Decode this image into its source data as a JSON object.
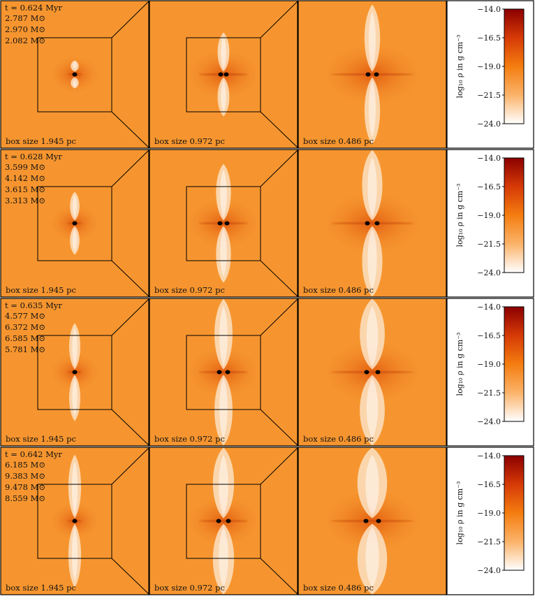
{
  "rows": [
    {
      "time": "t = 0.624 Myr",
      "masses": [
        "2.787 M⊙",
        "2.970 M⊙",
        "2.082 M⊙"
      ],
      "sinks": [
        [
          0.5,
          0.5
        ],
        [
          0.5,
          0.5
        ],
        [
          0.5,
          0.5
        ]
      ]
    },
    {
      "time": "t = 0.628 Myr",
      "masses": [
        "3.599 M⊙",
        "4.142 M⊙",
        "3.615 M⊙",
        "3.313 M⊙"
      ],
      "sinks": [
        [
          0.5,
          0.5
        ],
        [
          0.5,
          0.5
        ],
        [
          0.5,
          0.5
        ]
      ]
    },
    {
      "time": "t = 0.635 Myr",
      "masses": [
        "4.577 M⊙",
        "6.372 M⊙",
        "6.585 M⊙",
        "5.781 M⊙"
      ],
      "sinks": [
        [
          0.5,
          0.5
        ],
        [
          0.5,
          0.5
        ],
        [
          0.5,
          0.5
        ]
      ]
    },
    {
      "time": "t = 0.642 Myr",
      "masses": [
        "6.185 M⊙",
        "9.383 M⊙",
        "9.478 M⊙",
        "8.559 M⊙"
      ],
      "sinks": [
        [
          0.5,
          0.5
        ],
        [
          0.5,
          0.5
        ],
        [
          0.5,
          0.5
        ]
      ]
    }
  ],
  "box_sizes": [
    "box size 1.945 pc",
    "box size 0.972 pc",
    "box size 0.486 pc"
  ],
  "colorbar": {
    "label": "log₁₀ ρ in g cm⁻³",
    "ticks": [
      "−14.0",
      "−16.5",
      "−19.0",
      "−21.5",
      "−24.0"
    ],
    "tick_values": [
      -14.0,
      -16.5,
      -19.0,
      -21.5,
      -24.0
    ],
    "range": [
      -24.0,
      -14.0
    ],
    "colors": {
      "top": "#8b0000",
      "mid": "#f47d10",
      "bottom": "#ffffff"
    }
  },
  "panel_background": "#f6952f"
}
